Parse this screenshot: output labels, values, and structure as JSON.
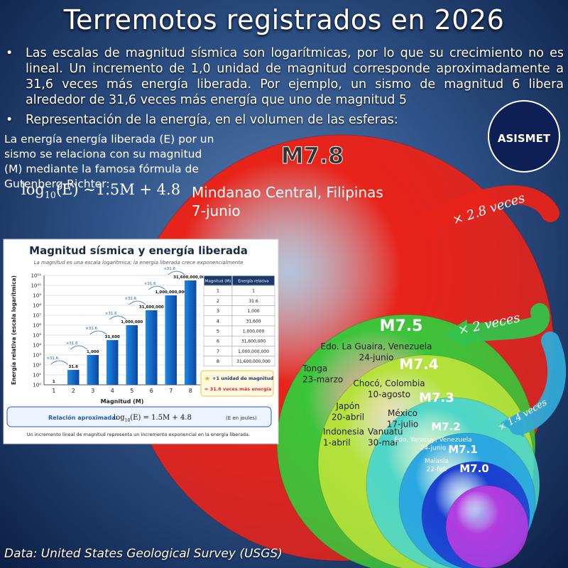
{
  "title": "Terremotos registrados en 2026",
  "bullets": [
    "Las escalas de magnitud sísmica son logarítmicas, por lo que su crecimiento no es lineal. Un incremento de 1,0 unidad de magnitud corresponde aproximadamente a 31,6 veces más energía liberada. Por ejemplo, un sismo de magnitud 6 libera alrededor de 31,6 veces más energía que uno de magnitud 5",
    "Representación de la energía, en el volumen de las esferas:"
  ],
  "note": "La energía energía liberada (E) por un sismo se relaciona con su magnitud (M) mediante la famosa fórmula de Gutenberg-Richter:",
  "formula": {
    "log": "log",
    "base": "10",
    "rest": "(E) ∼1.5M + 4.8"
  },
  "logo": "ASISMET",
  "spheres": [
    {
      "label": "M7.8",
      "color": "#e8231a",
      "events": [
        {
          "place": "Mindanao Central, Filipinas",
          "date": "7-junio"
        }
      ]
    },
    {
      "label": "M7.5",
      "color": "#3cc43a",
      "events": [
        {
          "place": "Edo. La Guaira, Venezuela",
          "date": "24-junio"
        },
        {
          "place": "Tonga",
          "date": "23-marzo"
        }
      ]
    },
    {
      "label": "M7.4",
      "color": "#b5e23a",
      "events": [
        {
          "place": "Chocó, Colombia",
          "date": "10-agosto"
        },
        {
          "place": "Japón",
          "date": "20-abril"
        },
        {
          "place": "Indonesia",
          "date": "1-abril"
        }
      ]
    },
    {
      "label": "M7.3",
      "color": "#4fd6c8",
      "events": [
        {
          "place": "México",
          "date": "17-julio"
        },
        {
          "place": "Vanuatu",
          "date": "30-mar"
        }
      ]
    },
    {
      "label": "M7.2",
      "color": "#2aa6e0",
      "events": [
        {
          "place": "Edo. Yaracuy, Venezuela",
          "date": "24-junio"
        }
      ]
    },
    {
      "label": "M7.1",
      "color": "#1b3fd0",
      "events": [
        {
          "place": "Malasia",
          "date": "22-feb"
        }
      ]
    },
    {
      "label": "M7.0",
      "color": "#b23de0",
      "events": []
    }
  ],
  "arrows": [
    "× 2.8 veces",
    "× 2 veces",
    "× 1.4 veces"
  ],
  "source": "Data: United States Geological Survey (USGS)",
  "chart_data": {
    "type": "bar",
    "title": "Magnitud sísmica y energía liberada",
    "subtitle": "La magnitud es una escala logarítmica; la energía liberada crece exponencialmente",
    "xlabel": "Magnitud (M)",
    "ylabel": "Energía relativa (escala logarítmica)",
    "categories": [
      "1",
      "2",
      "3",
      "4",
      "5",
      "6",
      "7",
      "8"
    ],
    "values": [
      1,
      31.6,
      1000,
      31600,
      1000000,
      31600000,
      1000000000,
      31600000000
    ],
    "value_labels": [
      "1",
      "31.6",
      "1,000",
      "31,600",
      "1,000,000",
      "31,600,000",
      "1,000,000,000",
      "31,600,000,000"
    ],
    "step_labels": [
      "×31.6",
      "×31.6",
      "×31.6",
      "×31.6",
      "×31.6",
      "×31.6",
      "×31.6"
    ],
    "color": "#1e88e5",
    "log_scale": true,
    "ylim": [
      1,
      100000000000
    ],
    "yticks": [
      {
        "value": 1,
        "label": "10⁰"
      },
      {
        "value": 10,
        "label": "10¹"
      },
      {
        "value": 100,
        "label": "10²"
      },
      {
        "value": 1000,
        "label": "10³"
      },
      {
        "value": 10000,
        "label": "10⁴"
      },
      {
        "value": 100000,
        "label": "10⁵"
      },
      {
        "value": 1000000,
        "label": "10⁶"
      },
      {
        "value": 10000000,
        "label": "10⁷"
      },
      {
        "value": 100000000,
        "label": "10⁸"
      },
      {
        "value": 1000000000,
        "label": "10⁹"
      },
      {
        "value": 10000000000,
        "label": "10¹⁰"
      },
      {
        "value": 100000000000,
        "label": "10¹¹"
      }
    ],
    "grid": true,
    "table_headers": [
      "Magnitud (M)",
      "Energía relativa"
    ],
    "legend": [
      "+1 unidad de magnitud",
      "≈ 31.6 veces más energía"
    ],
    "relation": {
      "label": "Relación aproximada:",
      "log": "log",
      "base": "10",
      "rest": "(E) = 1.5M + 4.8",
      "unit": "(E en joules)"
    },
    "footer": "Un incremento lineal de magnitud representa un incremento exponencial en la energía liberada."
  }
}
